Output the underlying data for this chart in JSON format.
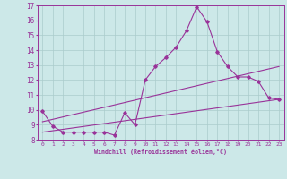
{
  "xlabel": "Windchill (Refroidissement éolien,°C)",
  "xlim": [
    -0.5,
    23.5
  ],
  "ylim": [
    8,
    17
  ],
  "yticks": [
    8,
    9,
    10,
    11,
    12,
    13,
    14,
    15,
    16,
    17
  ],
  "xticks": [
    0,
    1,
    2,
    3,
    4,
    5,
    6,
    7,
    8,
    9,
    10,
    11,
    12,
    13,
    14,
    15,
    16,
    17,
    18,
    19,
    20,
    21,
    22,
    23
  ],
  "background_color": "#cce8e8",
  "line_color": "#993399",
  "grid_color": "#aacccc",
  "line1_x": [
    0,
    1,
    2,
    3,
    4,
    5,
    6,
    7,
    8,
    9,
    10,
    11,
    12,
    13,
    14,
    15,
    16,
    17,
    18,
    19,
    20,
    21,
    22,
    23
  ],
  "line1_y": [
    9.9,
    8.9,
    8.5,
    8.5,
    8.5,
    8.5,
    8.5,
    8.3,
    9.8,
    9.0,
    12.0,
    12.9,
    13.5,
    14.2,
    15.3,
    16.9,
    15.9,
    13.9,
    12.9,
    12.2,
    12.2,
    11.9,
    10.8,
    10.7
  ],
  "line2_x": [
    0,
    23
  ],
  "line2_y": [
    9.2,
    12.9
  ],
  "line3_x": [
    0,
    23
  ],
  "line3_y": [
    8.5,
    10.7
  ]
}
